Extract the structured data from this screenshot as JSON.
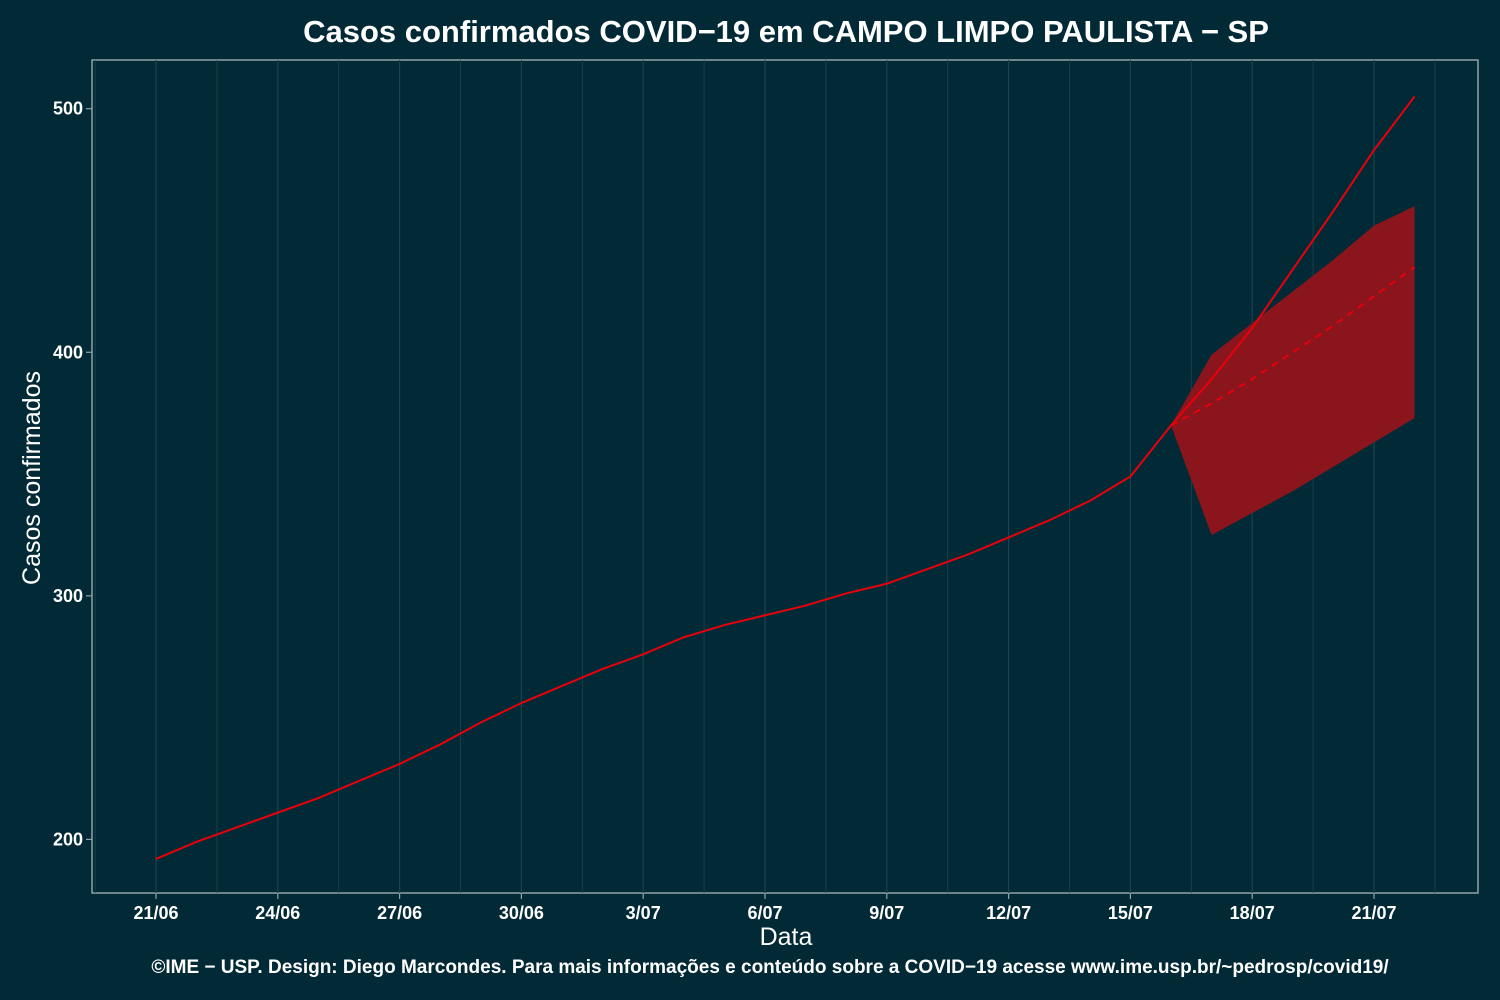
{
  "title": "Casos confirmados COVID−19 em CAMPO LIMPO PAULISTA − SP",
  "caption": "©IME − USP. Design: Diego Marcondes. Para mais informações e conteúdo sobre a COVID−19 acesse www.ime.usp.br/~pedrosp/covid19/",
  "colors": {
    "background": "#022a36",
    "observed_line": "#e8000b",
    "band_fill": "#8b151c",
    "grid": "#1b4450",
    "frame": "#8fa3a8"
  },
  "chart_data": {
    "type": "line",
    "title": "Casos confirmados COVID−19 em CAMPO LIMPO PAULISTA − SP",
    "xlabel": "Data",
    "ylabel": "Casos confirmados",
    "x_tick_labels": [
      "21/06",
      "24/06",
      "27/06",
      "30/06",
      "3/07",
      "6/07",
      "9/07",
      "12/07",
      "15/07",
      "18/07",
      "21/07"
    ],
    "y_ticks": [
      200,
      300,
      400,
      500
    ],
    "ylim": [
      178,
      520
    ],
    "grid": "vertical",
    "series": [
      {
        "style": "solid",
        "x": [
          "21/06",
          "22/06",
          "23/06",
          "24/06",
          "25/06",
          "26/06",
          "27/06",
          "28/06",
          "29/06",
          "30/06",
          "1/07",
          "2/07",
          "3/07",
          "4/07",
          "5/07",
          "6/07",
          "7/07",
          "8/07",
          "9/07",
          "10/07",
          "11/07",
          "12/07",
          "13/07",
          "14/07",
          "15/07",
          "16/07",
          "17/07",
          "18/07",
          "19/07",
          "20/07",
          "21/07",
          "22/07"
        ],
        "y": [
          192,
          199,
          205,
          211,
          217,
          224,
          231,
          239,
          248,
          256,
          263,
          270,
          276,
          283,
          288,
          292,
          296,
          301,
          305,
          311,
          317,
          324,
          331,
          339,
          349,
          370,
          389,
          410,
          434,
          458,
          483,
          505
        ]
      },
      {
        "style": "dashed",
        "x": [
          "16/07",
          "17/07",
          "18/07",
          "19/07",
          "20/07",
          "21/07",
          "22/07"
        ],
        "y": [
          370,
          379,
          389,
          400,
          411,
          423,
          435
        ]
      },
      {
        "style": "band",
        "x": [
          "16/07",
          "17/07",
          "18/07",
          "19/07",
          "20/07",
          "21/07",
          "22/07"
        ],
        "lower": [
          370,
          325,
          334,
          343,
          353,
          363,
          373
        ],
        "upper": [
          370,
          399,
          412,
          425,
          438,
          452,
          460
        ]
      }
    ]
  }
}
